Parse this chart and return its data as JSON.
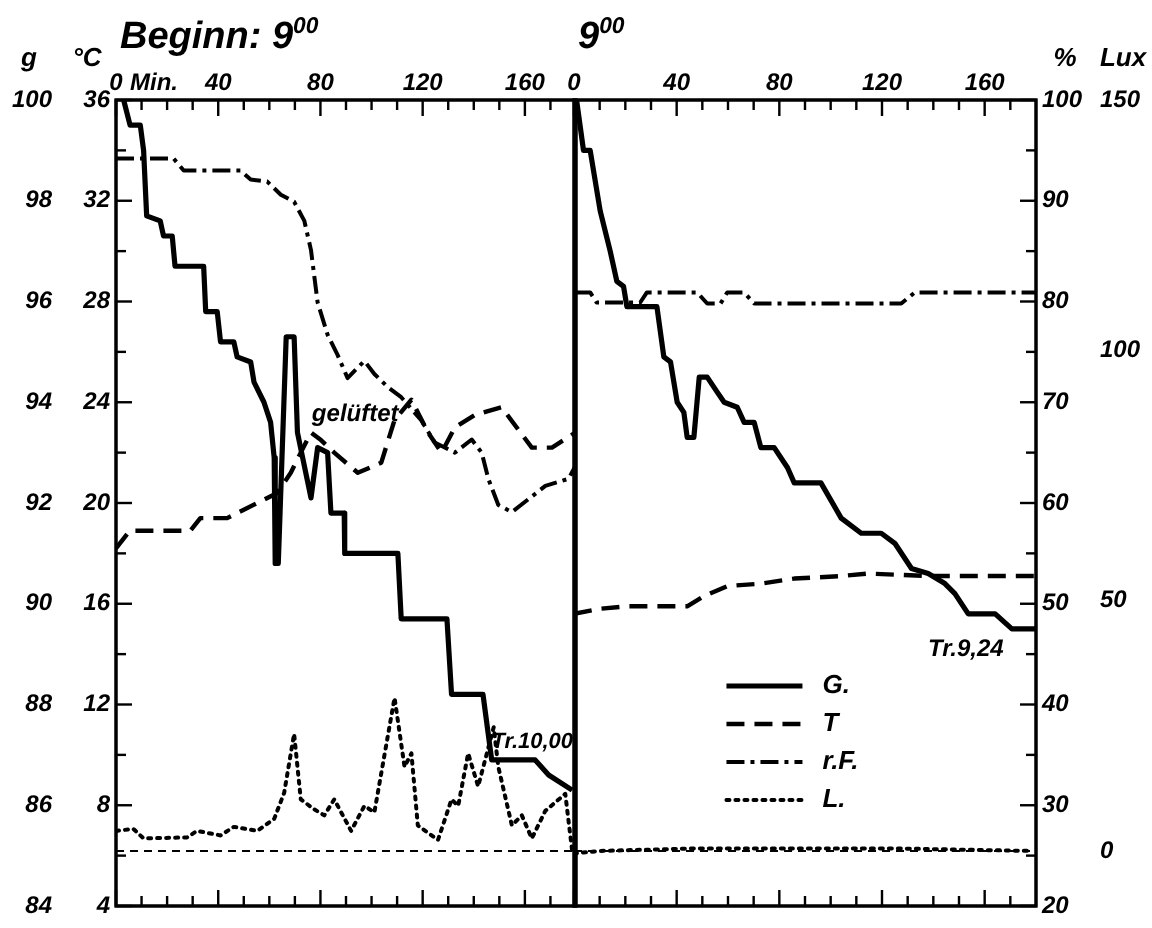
{
  "chart_data": [
    {
      "type": "line",
      "xlim": [
        0,
        180
      ],
      "xticks": [
        0,
        {
          "value": 10,
          "label": null
        },
        {
          "value": 20,
          "label": null
        },
        {
          "value": 30,
          "label": null
        },
        40,
        {
          "value": 50,
          "label": null
        },
        {
          "value": 60,
          "label": null
        },
        {
          "value": 70,
          "label": null
        },
        80,
        {
          "value": 90,
          "label": null
        },
        {
          "value": 100,
          "label": null
        },
        {
          "value": 110,
          "label": null
        },
        120,
        {
          "value": 130,
          "label": null
        },
        {
          "value": 140,
          "label": null
        },
        {
          "value": 150,
          "label": null
        },
        160,
        {
          "value": 170,
          "label": null
        }
      ],
      "ylim": [
        20,
        100
      ],
      "yticks": [
        100,
        {
          "value": 95,
          "label": null
        },
        90,
        {
          "value": 85,
          "label": null
        },
        80,
        {
          "value": 75,
          "label": null
        },
        70,
        {
          "value": 65,
          "label": null
        },
        60,
        {
          "value": 55,
          "label": null
        },
        50,
        {
          "value": 45,
          "label": null
        },
        40,
        {
          "value": 35,
          "label": null
        },
        30,
        {
          "value": 25,
          "label": null
        },
        20
      ],
      "y2lim": [
        -11,
        150
      ],
      "y2ticks": [
        150,
        100,
        50,
        0
      ],
      "tick_labels": false,
      "grid": false,
      "legend": false,
      "marker": "none",
      "series": [
        {
          "color": "#000000",
          "line_style": "dashdot",
          "x": [
            0,
            22.5,
            26.5,
            48.7,
            52.7,
            59.2,
            64.5,
            69.7,
            73.7,
            76.3,
            78.9,
            82.8,
            86.7,
            90.6,
            97.2,
            101.1,
            106.4,
            111.6,
            119.5,
            124.7,
            132.6,
            139.2,
            143.1,
            145.7,
            149.6,
            154.9,
            161.5,
            168,
            177.1,
            179.8
          ],
          "values": [
            94.2,
            94.2,
            93,
            93,
            92.1,
            91.9,
            90.6,
            89.9,
            88,
            85.1,
            79.9,
            76.7,
            74.7,
            72.4,
            74.1,
            72.8,
            71.5,
            70.5,
            68.2,
            66,
            65,
            66.3,
            65,
            62.4,
            59.8,
            59.1,
            60.4,
            61.7,
            62.4,
            63.7
          ]
        },
        {
          "color": "#000000",
          "axis": "y2",
          "line_style": "dotted",
          "x": [
            0,
            6.8,
            10.8,
            27.8,
            31.7,
            40.9,
            46.1,
            55.3,
            61.9,
            65.8,
            69.7,
            72.3,
            77.6,
            81.5,
            85.4,
            92,
            97.2,
            101.1,
            109,
            112.9,
            115.6,
            118.1,
            126,
            131.3,
            133.9,
            137.8,
            141.7,
            144.4,
            147.8,
            149.6,
            154.9,
            158.8,
            162.7,
            168,
            175.8,
            178.5
          ],
          "values": [
            4,
            4.4,
            2.5,
            2.7,
            4,
            3.1,
            4.8,
            4,
            6.4,
            11.6,
            23.4,
            10.3,
            8.3,
            7.1,
            10.3,
            4,
            9,
            7.7,
            30.6,
            16.8,
            19.5,
            5.1,
            2.2,
            10.3,
            9,
            19.5,
            12.9,
            18.1,
            24.7,
            16.8,
            5.1,
            7.1,
            2.5,
            8,
            11.4,
            0
          ]
        }
      ],
      "ref_lines": [
        {
          "axis": "y2",
          "value": 0,
          "line_style": "dashed"
        }
      ],
      "annotations": [
        "gelüftet"
      ]
    },
    {
      "type": "line",
      "title": "Beginn: 9$^{00}$",
      "xlabel": "Min.",
      "ylabel": "g",
      "y2label": "°C",
      "xlim": [
        0,
        180
      ],
      "xticks": [
        0,
        {
          "value": 10,
          "label": null
        },
        {
          "value": 20,
          "label": null
        },
        {
          "value": 30,
          "label": null
        },
        40,
        {
          "value": 50,
          "label": null
        },
        {
          "value": 60,
          "label": null
        },
        {
          "value": 70,
          "label": null
        },
        80,
        {
          "value": 90,
          "label": null
        },
        {
          "value": 100,
          "label": null
        },
        {
          "value": 110,
          "label": null
        },
        120,
        {
          "value": 130,
          "label": null
        },
        {
          "value": 140,
          "label": null
        },
        {
          "value": 150,
          "label": null
        },
        160,
        {
          "value": 170,
          "label": null
        }
      ],
      "ylim": [
        84,
        100
      ],
      "yticks": [
        100,
        {
          "value": 99,
          "label": null
        },
        98,
        {
          "value": 97,
          "label": null
        },
        96,
        {
          "value": 95,
          "label": null
        },
        94,
        {
          "value": 93,
          "label": null
        },
        92,
        {
          "value": 91,
          "label": null
        },
        90,
        {
          "value": 89,
          "label": null
        },
        88,
        {
          "value": 87,
          "label": null
        },
        86,
        {
          "value": 85,
          "label": null
        },
        84
      ],
      "y2lim": [
        4,
        36
      ],
      "y2ticks": [
        36,
        32,
        28,
        24,
        20,
        16,
        12,
        8,
        4
      ],
      "grid": false,
      "legend": false,
      "marker": "none",
      "series": [
        {
          "color": "#000000",
          "line_style": "solid",
          "x": [
            3,
            5.5,
            9.5,
            10.8,
            12,
            17.3,
            18.6,
            22,
            23.1,
            34.3,
            35.1,
            39.6,
            40.9,
            46.1,
            47.4,
            52.7,
            54,
            57.9,
            60.5,
            61.9,
            62.3,
            63.5,
            66.6,
            69.7,
            71,
            76.3,
            78.9,
            82.8,
            84.1,
            89.3,
            89.5,
            110.3,
            111.6,
            129.5,
            131.3,
            143.6,
            147,
            164,
            169.3,
            178.5
          ],
          "values": [
            100,
            99.5,
            99.5,
            99,
            97.7,
            97.6,
            97.3,
            97.3,
            96.7,
            96.7,
            95.8,
            95.8,
            95.2,
            95.2,
            94.9,
            94.8,
            94.4,
            94,
            93.6,
            92.9,
            90.8,
            90.8,
            95.3,
            95.3,
            93.4,
            92.1,
            93.1,
            93,
            91.8,
            91.8,
            91,
            91,
            89.7,
            89.7,
            88.2,
            88.2,
            86.9,
            86.9,
            86.6,
            86.3
          ]
        },
        {
          "color": "#000000",
          "axis": "y2",
          "line_style": "dashed",
          "x": [
            0,
            5.4,
            29.1,
            33,
            43.5,
            47.4,
            55.3,
            63.1,
            68.4,
            72.3,
            76.3,
            80.2,
            85.4,
            94.6,
            103.8,
            109,
            115.6,
            122.1,
            127.4,
            132.6,
            140.5,
            150.9,
            162.7,
            170.6,
            179.8
          ],
          "values": [
            18.2,
            18.9,
            18.9,
            19.4,
            19.4,
            19.6,
            20,
            20.4,
            21.2,
            22,
            22.8,
            22.5,
            22,
            21.2,
            21.6,
            23.3,
            24.1,
            22.8,
            22,
            23,
            23.5,
            23.8,
            22.2,
            22.2,
            22.8
          ]
        }
      ],
      "annotations": [
        "Tr.10,00"
      ]
    },
    {
      "type": "line",
      "title": "9$^{00}$",
      "xlim": [
        0,
        180
      ],
      "xticks": [
        0,
        {
          "value": 10,
          "label": null
        },
        {
          "value": 20,
          "label": null
        },
        {
          "value": 30,
          "label": null
        },
        40,
        {
          "value": 50,
          "label": null
        },
        {
          "value": 60,
          "label": null
        },
        {
          "value": 70,
          "label": null
        },
        80,
        {
          "value": 90,
          "label": null
        },
        {
          "value": 100,
          "label": null
        },
        {
          "value": 110,
          "label": null
        },
        120,
        {
          "value": 130,
          "label": null
        },
        {
          "value": 140,
          "label": null
        },
        {
          "value": 150,
          "label": null
        },
        160,
        {
          "value": 170,
          "label": null
        }
      ],
      "ylim": [
        84,
        100
      ],
      "yticks": [
        100,
        {
          "value": 99,
          "label": null
        },
        98,
        {
          "value": 97,
          "label": null
        },
        96,
        {
          "value": 95,
          "label": null
        },
        94,
        {
          "value": 93,
          "label": null
        },
        92,
        {
          "value": 91,
          "label": null
        },
        90,
        {
          "value": 89,
          "label": null
        },
        88,
        {
          "value": 87,
          "label": null
        },
        86,
        {
          "value": 85,
          "label": null
        },
        84
      ],
      "y2lim": [
        4,
        36
      ],
      "y2ticks": [
        36,
        32,
        28,
        24,
        20,
        16,
        12,
        8,
        4
      ],
      "tick_labels": false,
      "grid": false,
      "legend": "bottom",
      "marker": "none",
      "series": [
        {
          "name": "G.",
          "color": "#000000",
          "line_style": "solid",
          "x": [
            1,
            3.7,
            6.3,
            10.2,
            14.1,
            16.7,
            19.3,
            20.6,
            32.3,
            35,
            37.6,
            40.2,
            42.8,
            44.1,
            46.7,
            48.8,
            51.9,
            55.8,
            58.5,
            63.6,
            66.3,
            70.2,
            72.8,
            78,
            83.2,
            85.8,
            96.2,
            104.1,
            111.9,
            119.7,
            125,
            131.5,
            138,
            144.5,
            148.4,
            153.6,
            164.1,
            170.6,
            179.8
          ],
          "values": [
            100,
            99,
            99,
            97.8,
            97,
            96.4,
            96.3,
            95.9,
            95.9,
            94.9,
            94.8,
            94,
            93.8,
            93.3,
            93.3,
            94.5,
            94.5,
            94.2,
            94,
            93.9,
            93.6,
            93.6,
            93.1,
            93.1,
            92.7,
            92.4,
            92.4,
            91.7,
            91.4,
            91.4,
            91.2,
            90.7,
            90.6,
            90.4,
            90.2,
            89.8,
            89.8,
            89.5,
            89.5
          ]
        },
        {
          "name": "T",
          "color": "#000000",
          "axis": "y2",
          "line_style": "dashed",
          "x": [
            0,
            10.2,
            20.6,
            44.1,
            50.6,
            59.7,
            72.8,
            85.8,
            104.1,
            114.5,
            138,
            179.8
          ],
          "values": [
            15.6,
            15.8,
            15.9,
            15.9,
            16.3,
            16.7,
            16.8,
            17,
            17.1,
            17.2,
            17.1,
            17.1
          ]
        }
      ],
      "annotations": [
        "Tr.9,24"
      ]
    },
    {
      "type": "line",
      "ylabel": "%",
      "y2label": "Lux",
      "xlim": [
        0,
        180
      ],
      "xticks": [
        0,
        {
          "value": 10,
          "label": null
        },
        {
          "value": 20,
          "label": null
        },
        {
          "value": 30,
          "label": null
        },
        40,
        {
          "value": 50,
          "label": null
        },
        {
          "value": 60,
          "label": null
        },
        {
          "value": 70,
          "label": null
        },
        80,
        {
          "value": 90,
          "label": null
        },
        {
          "value": 100,
          "label": null
        },
        {
          "value": 110,
          "label": null
        },
        120,
        {
          "value": 130,
          "label": null
        },
        {
          "value": 140,
          "label": null
        },
        {
          "value": 150,
          "label": null
        },
        160,
        {
          "value": 170,
          "label": null
        }
      ],
      "ylim": [
        20,
        100
      ],
      "yticks": [
        100,
        {
          "value": 95,
          "label": null
        },
        90,
        {
          "value": 85,
          "label": null
        },
        80,
        {
          "value": 75,
          "label": null
        },
        70,
        {
          "value": 65,
          "label": null
        },
        60,
        {
          "value": 55,
          "label": null
        },
        50,
        {
          "value": 45,
          "label": null
        },
        40,
        {
          "value": 35,
          "label": null
        },
        30,
        {
          "value": 25,
          "label": null
        },
        20
      ],
      "y2lim": [
        -11,
        150
      ],
      "y2ticks": [
        150,
        100,
        50,
        0
      ],
      "grid": false,
      "legend": "bottom",
      "marker": "none",
      "series": [
        {
          "name": "r.F.",
          "color": "#000000",
          "line_style": "dashdot",
          "x": [
            1,
            6.3,
            8.8,
            25.8,
            28.4,
            48,
            51.9,
            57.1,
            59.7,
            66.3,
            70.2,
            127.5,
            132.8,
            179.8
          ],
          "values": [
            80.9,
            80.9,
            79.9,
            79.9,
            80.9,
            80.9,
            79.8,
            79.8,
            80.9,
            80.9,
            79.8,
            79.8,
            80.9,
            80.9
          ]
        },
        {
          "name": "L.",
          "color": "#000000",
          "axis": "y2",
          "line_style": "dotted",
          "x": [
            0,
            10,
            47,
            125,
            178
          ],
          "values": [
            -0.5,
            0,
            0.5,
            0.5,
            0
          ]
        }
      ],
      "ref_lines": [
        {
          "axis": "y2",
          "value": 0,
          "line_style": "dashed"
        }
      ]
    }
  ]
}
